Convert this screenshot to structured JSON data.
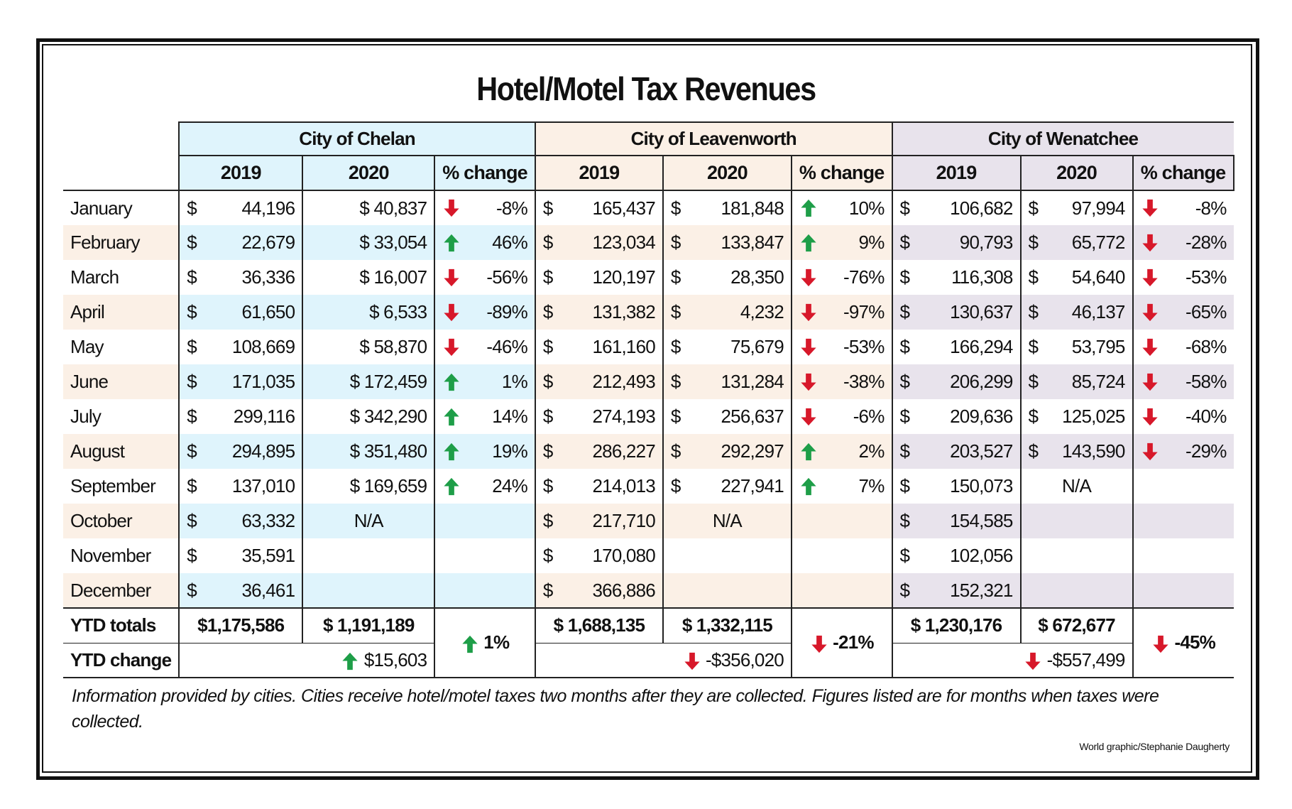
{
  "title": "Hotel/Motel Tax Revenues",
  "colors": {
    "chelan": "#dff4fc",
    "leavenworth": "#fbf0e6",
    "wenatchee": "#e8e3ec",
    "up": "#1e9e48",
    "down": "#d7182a"
  },
  "cities": [
    "City of Chelan",
    "City of Leavenworth",
    "City of Wenatchee"
  ],
  "subheaders": [
    "2019",
    "2020",
    "% change"
  ],
  "rows": [
    {
      "label": "January",
      "data": [
        [
          "44,196",
          "40,837",
          "down",
          "-8%"
        ],
        [
          "165,437",
          "181,848",
          "up",
          "10%"
        ],
        [
          "106,682",
          "97,994",
          "down",
          "-8%"
        ]
      ]
    },
    {
      "label": "February",
      "data": [
        [
          "22,679",
          "33,054",
          "up",
          "46%"
        ],
        [
          "123,034",
          "133,847",
          "up",
          "9%"
        ],
        [
          "90,793",
          "65,772",
          "down",
          "-28%"
        ]
      ]
    },
    {
      "label": "March",
      "data": [
        [
          "36,336",
          "16,007",
          "down",
          "-56%"
        ],
        [
          "120,197",
          "28,350",
          "down",
          "-76%"
        ],
        [
          "116,308",
          "54,640",
          "down",
          "-53%"
        ]
      ]
    },
    {
      "label": "April",
      "data": [
        [
          "61,650",
          "6,533",
          "down",
          "-89%"
        ],
        [
          "131,382",
          "4,232",
          "down",
          "-97%"
        ],
        [
          "130,637",
          "46,137",
          "down",
          "-65%"
        ]
      ]
    },
    {
      "label": "May",
      "data": [
        [
          "108,669",
          "58,870",
          "down",
          "-46%"
        ],
        [
          "161,160",
          "75,679",
          "down",
          "-53%"
        ],
        [
          "166,294",
          "53,795",
          "down",
          "-68%"
        ]
      ]
    },
    {
      "label": "June",
      "data": [
        [
          "171,035",
          "172,459",
          "up",
          "1%"
        ],
        [
          "212,493",
          "131,284",
          "down",
          "-38%"
        ],
        [
          "206,299",
          "85,724",
          "down",
          "-58%"
        ]
      ]
    },
    {
      "label": "July",
      "data": [
        [
          "299,116",
          "342,290",
          "up",
          "14%"
        ],
        [
          "274,193",
          "256,637",
          "down",
          "-6%"
        ],
        [
          "209,636",
          "125,025",
          "down",
          "-40%"
        ]
      ]
    },
    {
      "label": "August",
      "data": [
        [
          "294,895",
          "351,480",
          "up",
          "19%"
        ],
        [
          "286,227",
          "292,297",
          "up",
          "2%"
        ],
        [
          "203,527",
          "143,590",
          "down",
          "-29%"
        ]
      ]
    },
    {
      "label": "September",
      "data": [
        [
          "137,010",
          "169,659",
          "up",
          "24%"
        ],
        [
          "214,013",
          "227,941",
          "up",
          "7%"
        ],
        [
          "150,073",
          "N/A",
          "",
          ""
        ]
      ]
    },
    {
      "label": "October",
      "data": [
        [
          "63,332",
          "N/A",
          "",
          ""
        ],
        [
          "217,710",
          "N/A",
          "",
          ""
        ],
        [
          "154,585",
          "",
          "",
          ""
        ]
      ]
    },
    {
      "label": "November",
      "data": [
        [
          "35,591",
          "",
          "",
          ""
        ],
        [
          "170,080",
          "",
          "",
          ""
        ],
        [
          "102,056",
          "",
          "",
          ""
        ]
      ]
    },
    {
      "label": "December",
      "data": [
        [
          "36,461",
          "",
          "",
          ""
        ],
        [
          "366,886",
          "",
          "",
          ""
        ],
        [
          "152,321",
          "",
          "",
          ""
        ]
      ]
    }
  ],
  "ytd": {
    "totals_label": "YTD totals",
    "change_label": "YTD change",
    "cities": [
      {
        "t2019": "$1,175,586",
        "t2020": "$ 1,191,189",
        "dir": "up",
        "pct": "1%",
        "change": "$15,603"
      },
      {
        "t2019": "$ 1,688,135",
        "t2020": "$ 1,332,115",
        "dir": "down",
        "pct": "-21%",
        "change": "-$356,020"
      },
      {
        "t2019": "$ 1,230,176",
        "t2020": "$ 672,677",
        "dir": "down",
        "pct": "-45%",
        "change": "-$557,499"
      }
    ]
  },
  "note": "Information provided by cities. Cities receive hotel/motel taxes two months after they are collected. Figures listed are for months when taxes were collected.",
  "credit": "World graphic/Stephanie Daugherty"
}
